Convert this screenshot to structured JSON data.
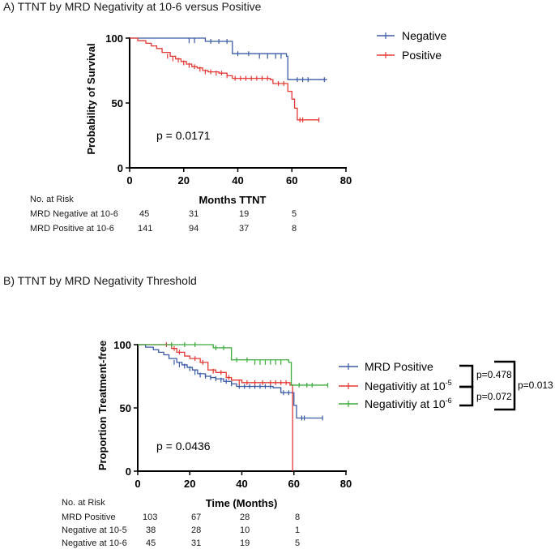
{
  "chart_data": [
    {
      "id": "A",
      "type": "line",
      "subtype": "kaplan-meier",
      "title": "A)  TTNT by MRD Negativity at 10-6 versus Positive",
      "xlabel": "Months TTNT",
      "ylabel": "Probability of Survival",
      "xlim": [
        0,
        80
      ],
      "ylim": [
        0,
        100
      ],
      "xticks": [
        "0",
        "20",
        "40",
        "60",
        "80"
      ],
      "yticks": [
        "0",
        "50",
        "100"
      ],
      "annotation": "p =  0.0171",
      "legend_position": "right",
      "series": [
        {
          "name": "Negative",
          "color": "#3b5aa6",
          "steps": [
            [
              0,
              100
            ],
            [
              28,
              97.5
            ],
            [
              38,
              88
            ],
            [
              58,
              86
            ],
            [
              58.5,
              68
            ],
            [
              73,
              68
            ]
          ],
          "censors": [
            [
              22,
              98
            ],
            [
              24,
              98
            ],
            [
              30,
              97.5
            ],
            [
              33,
              97.5
            ],
            [
              36,
              97.5
            ],
            [
              40,
              88
            ],
            [
              44,
              88
            ],
            [
              48,
              86
            ],
            [
              51,
              86
            ],
            [
              54,
              86
            ],
            [
              56,
              86
            ],
            [
              62,
              68
            ],
            [
              64,
              68
            ],
            [
              66,
              68
            ],
            [
              72,
              68
            ]
          ]
        },
        {
          "name": "Positive",
          "color": "#e53935",
          "steps": [
            [
              0,
              100
            ],
            [
              3,
              98
            ],
            [
              6,
              96
            ],
            [
              8,
              94
            ],
            [
              10,
              92
            ],
            [
              12,
              89
            ],
            [
              15,
              86
            ],
            [
              17,
              84
            ],
            [
              19,
              82
            ],
            [
              21,
              80
            ],
            [
              23,
              78
            ],
            [
              25,
              77
            ],
            [
              27,
              75
            ],
            [
              29,
              74
            ],
            [
              33,
              73
            ],
            [
              36,
              71
            ],
            [
              38,
              69
            ],
            [
              52,
              68
            ],
            [
              53,
              65
            ],
            [
              58,
              65
            ],
            [
              58.5,
              59
            ],
            [
              60,
              53
            ],
            [
              61,
              46
            ],
            [
              62,
              37
            ],
            [
              70,
              37
            ]
          ],
          "censors": [
            [
              14,
              86
            ],
            [
              16,
              84
            ],
            [
              18,
              83
            ],
            [
              20,
              81
            ],
            [
              22,
              79
            ],
            [
              24,
              78
            ],
            [
              26,
              76
            ],
            [
              28,
              74
            ],
            [
              30,
              74
            ],
            [
              32,
              73
            ],
            [
              34,
              73
            ],
            [
              36,
              71
            ],
            [
              39,
              69
            ],
            [
              41,
              69
            ],
            [
              43,
              69
            ],
            [
              45,
              69
            ],
            [
              47,
              69
            ],
            [
              49,
              69
            ],
            [
              51,
              69
            ],
            [
              55,
              65
            ],
            [
              57,
              65
            ],
            [
              63,
              37
            ],
            [
              64,
              37
            ],
            [
              70,
              37
            ]
          ]
        }
      ],
      "risk_table": {
        "header": "No. at Risk",
        "rows": [
          {
            "label": "MRD Negative at 10-6",
            "values": [
              "45",
              "31",
              "19",
              "5"
            ]
          },
          {
            "label": "MRD Positive at 10-6",
            "values": [
              "141",
              "94",
              "37",
              "8"
            ]
          }
        ]
      }
    },
    {
      "id": "B",
      "type": "line",
      "subtype": "kaplan-meier",
      "title": "B)  TTNT by MRD Negativity Threshold",
      "xlabel": "Time (Months)",
      "ylabel": "Proportion Treatment-free",
      "xlim": [
        0,
        80
      ],
      "ylim": [
        0,
        100
      ],
      "xticks": [
        "0",
        "20",
        "40",
        "60",
        "80"
      ],
      "yticks": [
        "0",
        "50",
        "100"
      ],
      "annotation": "p =  0.0436",
      "legend_position": "right",
      "series": [
        {
          "name": "MRD Positive",
          "color": "#3b5aa6",
          "steps": [
            [
              0,
              100
            ],
            [
              3,
              98
            ],
            [
              6,
              96
            ],
            [
              8,
              94
            ],
            [
              10,
              92
            ],
            [
              12,
              89
            ],
            [
              15,
              86
            ],
            [
              17,
              84
            ],
            [
              19,
              82
            ],
            [
              21,
              80
            ],
            [
              23,
              77
            ],
            [
              26,
              75
            ],
            [
              28,
              74
            ],
            [
              30,
              73
            ],
            [
              33,
              71
            ],
            [
              36,
              69
            ],
            [
              38,
              67
            ],
            [
              52,
              66
            ],
            [
              55,
              62
            ],
            [
              59,
              62
            ],
            [
              60,
              52
            ],
            [
              61,
              42
            ],
            [
              71,
              42
            ]
          ],
          "censors": [
            [
              14,
              86
            ],
            [
              16,
              84
            ],
            [
              18,
              83
            ],
            [
              20,
              81
            ],
            [
              22,
              78
            ],
            [
              24,
              76
            ],
            [
              26,
              75
            ],
            [
              28,
              74
            ],
            [
              30,
              73
            ],
            [
              32,
              72
            ],
            [
              34,
              71
            ],
            [
              36,
              69
            ],
            [
              39,
              67
            ],
            [
              41,
              67
            ],
            [
              43,
              67
            ],
            [
              45,
              67
            ],
            [
              47,
              67
            ],
            [
              49,
              67
            ],
            [
              51,
              67
            ],
            [
              56,
              62
            ],
            [
              58,
              62
            ],
            [
              63,
              42
            ],
            [
              64,
              42
            ],
            [
              71,
              42
            ]
          ]
        },
        {
          "name": "Negativitiy at 10",
          "exponent": "-5",
          "color": "#e53935",
          "steps": [
            [
              0,
              100
            ],
            [
              13,
              97
            ],
            [
              15,
              94
            ],
            [
              18,
              91
            ],
            [
              20,
              89
            ],
            [
              24,
              86
            ],
            [
              27,
              80
            ],
            [
              30,
              78
            ],
            [
              34,
              74
            ],
            [
              36,
              72
            ],
            [
              40,
              70
            ],
            [
              44,
              70
            ],
            [
              58,
              70
            ],
            [
              58.5,
              68
            ],
            [
              59.5,
              0
            ]
          ],
          "censors": [
            [
              11,
              100
            ],
            [
              14,
              97
            ],
            [
              16,
              94
            ],
            [
              22,
              89
            ],
            [
              25,
              86
            ],
            [
              29,
              79
            ],
            [
              32,
              78
            ],
            [
              35,
              74
            ],
            [
              39,
              70
            ],
            [
              42,
              70
            ],
            [
              45,
              70
            ],
            [
              48,
              70
            ],
            [
              51,
              70
            ],
            [
              53,
              70
            ],
            [
              55,
              70
            ],
            [
              57,
              70
            ]
          ]
        },
        {
          "name": "Negativitiy at 10",
          "exponent": "-6",
          "color": "#3cab3c",
          "steps": [
            [
              0,
              100
            ],
            [
              29,
              97.5
            ],
            [
              36,
              88
            ],
            [
              58,
              86
            ],
            [
              59,
              68
            ],
            [
              73,
              68
            ]
          ],
          "censors": [
            [
              13,
              100
            ],
            [
              18,
              100
            ],
            [
              22,
              100
            ],
            [
              30,
              97.5
            ],
            [
              33,
              97.5
            ],
            [
              38,
              88
            ],
            [
              42,
              88
            ],
            [
              45,
              86
            ],
            [
              47,
              86
            ],
            [
              49,
              86
            ],
            [
              51,
              86
            ],
            [
              53,
              86
            ],
            [
              55,
              86
            ],
            [
              62,
              68
            ],
            [
              65,
              68
            ],
            [
              67,
              68
            ],
            [
              73,
              68
            ]
          ]
        }
      ],
      "comparisons": [
        "p=0.478",
        "p=0.072",
        "p=0.013"
      ],
      "risk_table": {
        "header": "No. at Risk",
        "rows": [
          {
            "label": "MRD Positive",
            "values": [
              "103",
              "67",
              "28",
              "8"
            ]
          },
          {
            "label": "Negative at 10-5",
            "values": [
              "38",
              "28",
              "10",
              "1"
            ]
          },
          {
            "label": "Negative at 10-6",
            "values": [
              "45",
              "31",
              "19",
              "5"
            ]
          }
        ]
      }
    }
  ]
}
